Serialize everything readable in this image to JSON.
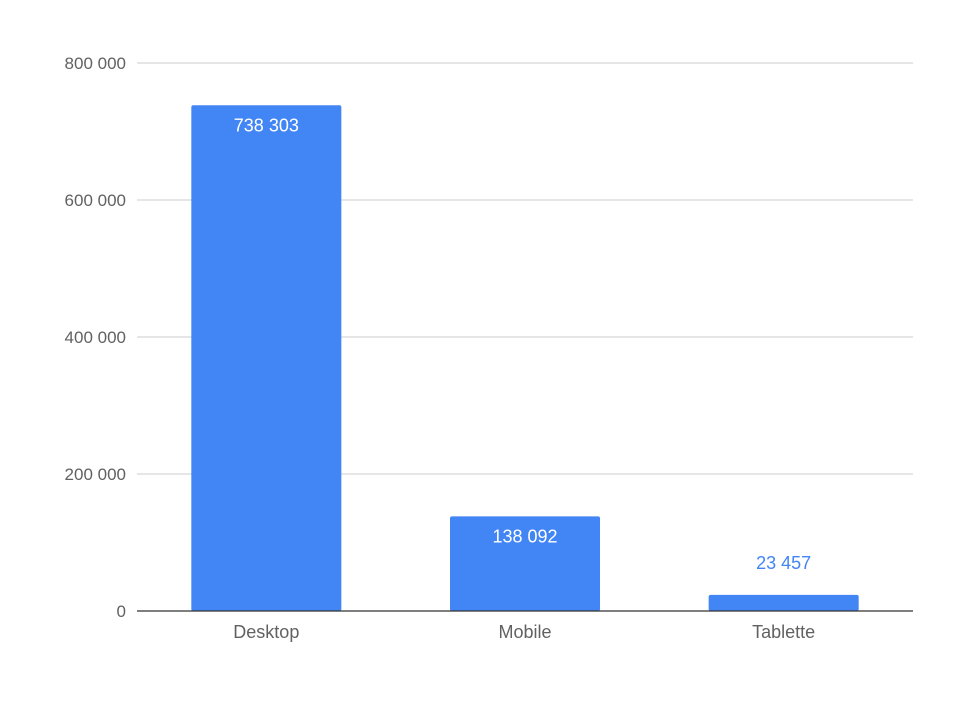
{
  "chart_data": {
    "type": "bar",
    "categories": [
      "Desktop",
      "Mobile",
      "Tablette"
    ],
    "values": [
      738303,
      138092,
      23457
    ],
    "data_labels": [
      "738 303",
      "138 092",
      "23 457"
    ],
    "y_ticks": [
      0,
      200000,
      400000,
      600000,
      800000
    ],
    "y_tick_labels": [
      "0",
      "200 000",
      "400 000",
      "600 000",
      "800 000"
    ],
    "ylim": [
      0,
      800000
    ],
    "grid": true,
    "legend": "none",
    "bar_color": "#4285f4",
    "inside_label_color": "#ffffff",
    "outside_label_color": "#4285f4",
    "gridline_color": "#cccccc",
    "axis_color": "#333333"
  }
}
